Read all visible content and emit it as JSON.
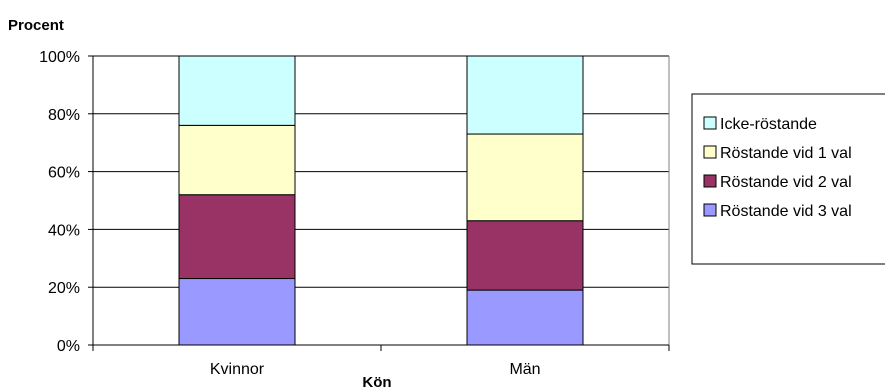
{
  "chart_data": {
    "type": "bar",
    "stacked": true,
    "categories": [
      "Kvinnor",
      "Män"
    ],
    "series": [
      {
        "name": "Röstande vid 3 val",
        "values": [
          23,
          19
        ],
        "color": "#9999ff"
      },
      {
        "name": "Röstande vid 2 val",
        "values": [
          29,
          24
        ],
        "color": "#993366"
      },
      {
        "name": "Röstande vid 1 val",
        "values": [
          24,
          30
        ],
        "color": "#ffffcc"
      },
      {
        "name": "Icke-röstande",
        "values": [
          24,
          27
        ],
        "color": "#ccffff"
      }
    ],
    "ylabel": "Procent",
    "xlabel": "Kön",
    "ylim": [
      0,
      100
    ],
    "yticks": [
      "0%",
      "20%",
      "40%",
      "60%",
      "80%",
      "100%"
    ],
    "grid": true,
    "legend": "right"
  }
}
